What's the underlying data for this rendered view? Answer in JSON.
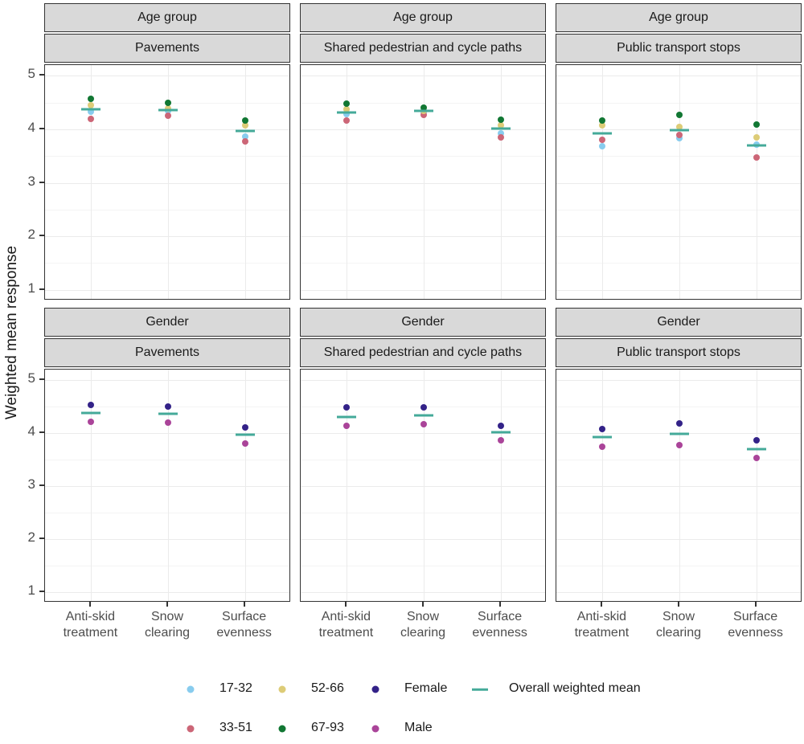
{
  "chart_data": {
    "type": "scatter",
    "title": "",
    "ylabel": "Weighted mean response",
    "xlabel": "",
    "ylim": [
      1,
      5
    ],
    "y_ticks": [
      1,
      2,
      3,
      4,
      5
    ],
    "y_minor_gridlines": [
      1.5,
      2.5,
      3.5,
      4.5
    ],
    "grid": true,
    "legend_position": "bottom",
    "facet_rows": [
      "Age group",
      "Gender"
    ],
    "facet_cols": [
      "Pavements",
      "Shared pedestrian and cycle paths",
      "Public transport stops"
    ],
    "categories": [
      "Anti-skid treatment",
      "Snow clearing",
      "Surface evenness"
    ],
    "category_lines": [
      [
        "Anti-skid",
        "treatment"
      ],
      [
        "Snow",
        "clearing"
      ],
      [
        "Surface",
        "evenness"
      ]
    ],
    "series_colors": {
      "17-32": "#88CCEE",
      "33-51": "#CC6677",
      "52-66": "#DDCC77",
      "67-93": "#117733",
      "Female": "#332288",
      "Male": "#AA4499",
      "Overall weighted mean": "#44AA99"
    },
    "panels": [
      {
        "facet_row": "Age group",
        "facet_col": "Pavements",
        "series": [
          {
            "name": "17-32",
            "values": [
              4.33,
              4.35,
              3.87
            ]
          },
          {
            "name": "33-51",
            "values": [
              4.19,
              4.25,
              3.77
            ]
          },
          {
            "name": "52-66",
            "values": [
              4.45,
              4.39,
              4.08
            ]
          },
          {
            "name": "67-93",
            "values": [
              4.57,
              4.49,
              4.17
            ]
          }
        ],
        "overall_mean": [
          4.38,
          4.36,
          3.97
        ]
      },
      {
        "facet_row": "Age group",
        "facet_col": "Shared pedestrian and cycle paths",
        "series": [
          {
            "name": "17-32",
            "values": [
              4.29,
              4.32,
              3.93
            ]
          },
          {
            "name": "33-51",
            "values": [
              4.16,
              4.27,
              3.85
            ]
          },
          {
            "name": "52-66",
            "values": [
              4.37,
              4.35,
              4.07
            ]
          },
          {
            "name": "67-93",
            "values": [
              4.48,
              4.41,
              4.18
            ]
          }
        ],
        "overall_mean": [
          4.31,
          4.34,
          4.01
        ]
      },
      {
        "facet_row": "Age group",
        "facet_col": "Public transport stops",
        "series": [
          {
            "name": "17-32",
            "values": [
              3.69,
              3.83,
              3.71
            ]
          },
          {
            "name": "33-51",
            "values": [
              3.8,
              3.89,
              3.47
            ]
          },
          {
            "name": "52-66",
            "values": [
              4.07,
              4.05,
              3.85
            ]
          },
          {
            "name": "67-93",
            "values": [
              4.16,
              4.27,
              4.09
            ]
          }
        ],
        "overall_mean": [
          3.93,
          3.99,
          3.7
        ]
      },
      {
        "facet_row": "Gender",
        "facet_col": "Pavements",
        "series": [
          {
            "name": "Female",
            "values": [
              4.53,
              4.5,
              4.11
            ]
          },
          {
            "name": "Male",
            "values": [
              4.21,
              4.2,
              3.81
            ]
          }
        ],
        "overall_mean": [
          4.38,
          4.36,
          3.97
        ]
      },
      {
        "facet_row": "Gender",
        "facet_col": "Shared pedestrian and cycle paths",
        "series": [
          {
            "name": "Female",
            "values": [
              4.48,
              4.49,
              4.14
            ]
          },
          {
            "name": "Male",
            "values": [
              4.14,
              4.17,
              3.87
            ]
          }
        ],
        "overall_mean": [
          4.31,
          4.34,
          4.01
        ]
      },
      {
        "facet_row": "Gender",
        "facet_col": "Public transport stops",
        "series": [
          {
            "name": "Female",
            "values": [
              4.08,
              4.18,
              3.86
            ]
          },
          {
            "name": "Male",
            "values": [
              3.74,
              3.78,
              3.53
            ]
          }
        ],
        "overall_mean": [
          3.93,
          3.99,
          3.7
        ]
      }
    ]
  },
  "legend": {
    "rows": [
      [
        {
          "label": "17-32",
          "color": "#88CCEE",
          "glyph": "dot"
        },
        {
          "label": "52-66",
          "color": "#DDCC77",
          "glyph": "dot"
        },
        {
          "label": "Female",
          "color": "#332288",
          "glyph": "dot"
        },
        {
          "label": "Overall weighted mean",
          "color": "#44AA99",
          "glyph": "line"
        }
      ],
      [
        {
          "label": "33-51",
          "color": "#CC6677",
          "glyph": "dot"
        },
        {
          "label": "67-93",
          "color": "#117733",
          "glyph": "dot"
        },
        {
          "label": "Male",
          "color": "#AA4499",
          "glyph": "dot"
        }
      ]
    ]
  },
  "colors": {
    "strip_fill": "#d9d9d9",
    "panel_border": "#333333",
    "grid_major": "#ebebeb",
    "grid_minor": "#f4f4f4",
    "tick_text": "#4d4d4d",
    "text": "#1a1a1a"
  }
}
